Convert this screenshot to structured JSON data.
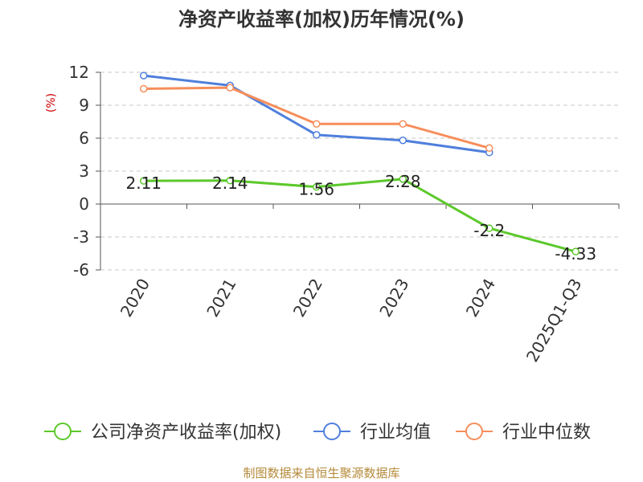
{
  "chart_data": {
    "type": "line",
    "title": "净资产收益率(加权)历年情况(%)",
    "ylabel": "(%)",
    "xlabel": "",
    "categories": [
      "2020",
      "2021",
      "2022",
      "2023",
      "2024",
      "2025Q1-Q3"
    ],
    "y_ticks": [
      "12",
      "9",
      "6",
      "3",
      "0",
      "-3",
      "-6"
    ],
    "ylim": [
      -6,
      12
    ],
    "grid": true,
    "series": [
      {
        "name": "公司净资产收益率(加权)",
        "color": "#5cc82b",
        "values": [
          2.11,
          2.14,
          1.56,
          2.28,
          -2.2,
          -4.33
        ],
        "labels": [
          "2.11",
          "2.14",
          "1.56",
          "2.28",
          "-2.2",
          "-4.33"
        ]
      },
      {
        "name": "行业均值",
        "color": "#4f7fdc",
        "values": [
          11.7,
          10.8,
          6.3,
          5.8,
          4.7,
          null
        ]
      },
      {
        "name": "行业中位数",
        "color": "#f68e5a",
        "values": [
          10.5,
          10.6,
          7.3,
          7.3,
          5.1,
          null
        ]
      }
    ]
  },
  "footer": {
    "source": "制图数据来自恒生聚源数据库"
  }
}
